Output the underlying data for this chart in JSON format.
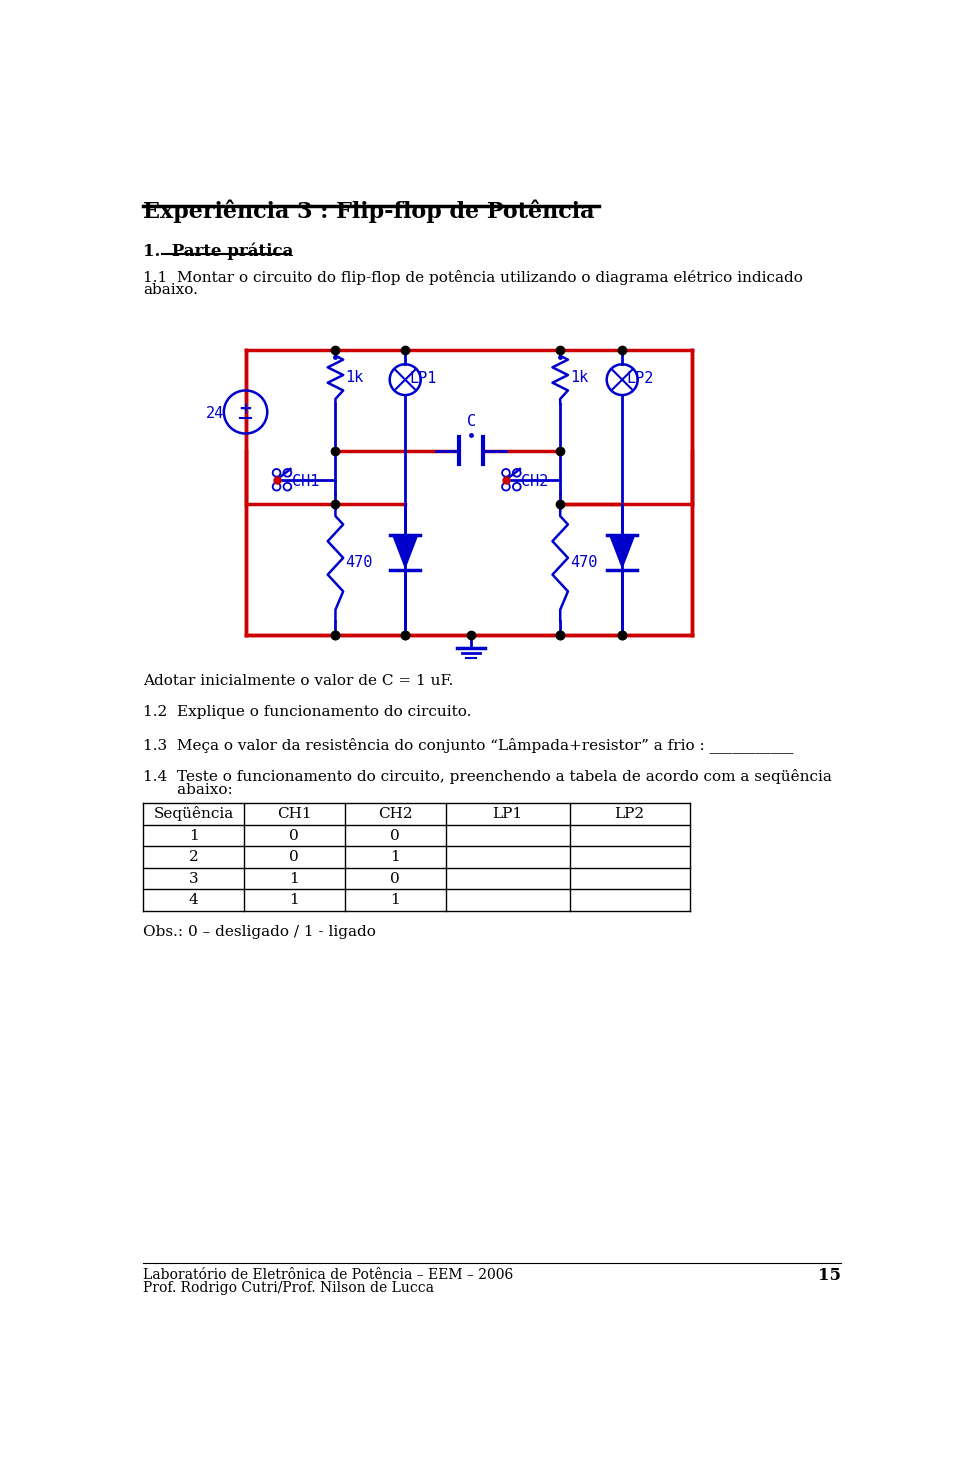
{
  "title": "Experiência 3 : Flip-flop de Potência",
  "section1": "1.  Parte prática",
  "text2": "Adotar inicialmente o valor de C = 1 uF.",
  "text3": "1.2  Explique o funcionamento do circuito.",
  "text4": "1.3  Meça o valor da resistência do conjunto “Lâmpada+resistor” a frio : ___________",
  "text5a": "1.4  Teste o funcionamento do circuito, preenchendo a tabela de acordo com a seqüência",
  "text5b": "       abaixo:",
  "table_headers": [
    "Seqüência",
    "CH1",
    "CH2",
    "LP1",
    "LP2"
  ],
  "table_rows": [
    [
      "1",
      "0",
      "0",
      "",
      ""
    ],
    [
      "2",
      "0",
      "1",
      "",
      ""
    ],
    [
      "3",
      "1",
      "0",
      "",
      ""
    ],
    [
      "4",
      "1",
      "1",
      "",
      ""
    ]
  ],
  "obs": "Obs.: 0 – desligado / 1 - ligado",
  "footer1": "Laboratório de Eletrônica de Potência – EEM – 2006",
  "footer2": "Prof. Rodrigo Cutri/Prof. Nilson de Lucca",
  "page_num": "15",
  "bg_color": "#ffffff",
  "text_color": "#000000",
  "circuit_blue": "#0000cc",
  "circuit_red": "#cc0000"
}
